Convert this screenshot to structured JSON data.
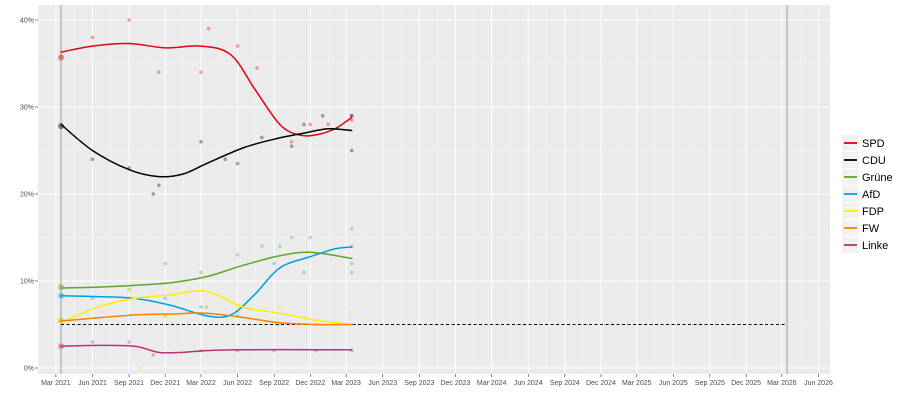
{
  "chart_data": {
    "type": "line",
    "title": "",
    "xlabel": "",
    "ylabel": "",
    "ylim": [
      0,
      40
    ],
    "xlim": [
      "2021-01-15",
      "2026-06-30"
    ],
    "y_ticks": [
      {
        "value": 0,
        "label": "0%"
      },
      {
        "value": 10,
        "label": "10%"
      },
      {
        "value": 20,
        "label": "20%"
      },
      {
        "value": 30,
        "label": "30%"
      },
      {
        "value": 40,
        "label": "40%"
      }
    ],
    "x_ticks": [
      {
        "date": "2021-03-01",
        "label": "Mar 2021"
      },
      {
        "date": "2021-06-01",
        "label": "Jun 2021"
      },
      {
        "date": "2021-09-01",
        "label": "Sep 2021"
      },
      {
        "date": "2021-12-01",
        "label": "Dec 2021"
      },
      {
        "date": "2022-03-01",
        "label": "Mar 2022"
      },
      {
        "date": "2022-06-01",
        "label": "Jun 2022"
      },
      {
        "date": "2022-09-01",
        "label": "Sep 2022"
      },
      {
        "date": "2022-12-01",
        "label": "Dec 2022"
      },
      {
        "date": "2023-03-01",
        "label": "Mar 2023"
      },
      {
        "date": "2023-06-01",
        "label": "Jun 2023"
      },
      {
        "date": "2023-09-01",
        "label": "Sep 2023"
      },
      {
        "date": "2023-12-01",
        "label": "Dec 2023"
      },
      {
        "date": "2024-03-01",
        "label": "Mar 2024"
      },
      {
        "date": "2024-06-01",
        "label": "Jun 2024"
      },
      {
        "date": "2024-09-01",
        "label": "Sep 2024"
      },
      {
        "date": "2024-12-01",
        "label": "Dec 2024"
      },
      {
        "date": "2025-03-01",
        "label": "Mar 2025"
      },
      {
        "date": "2025-06-01",
        "label": "Jun 2025"
      },
      {
        "date": "2025-09-01",
        "label": "Sep 2025"
      },
      {
        "date": "2025-12-01",
        "label": "Dec 2025"
      },
      {
        "date": "2026-03-01",
        "label": "Mar 2026"
      },
      {
        "date": "2026-06-01",
        "label": "Jun 2026"
      }
    ],
    "grid": true,
    "legend_position": "right",
    "election_markers": [
      "2021-03-14",
      "2026-03-14"
    ],
    "threshold": {
      "value": 5,
      "from": "2021-03-14",
      "to": "2026-03-14",
      "style": "dashed",
      "color": "#000000"
    },
    "series": [
      {
        "name": "SPD",
        "color": "#e3000f",
        "line": [
          [
            "2021-03-14",
            36.3
          ],
          [
            "2021-06-01",
            37.0
          ],
          [
            "2021-09-01",
            37.3
          ],
          [
            "2021-12-01",
            36.8
          ],
          [
            "2022-03-01",
            37.0
          ],
          [
            "2022-05-15",
            36.0
          ],
          [
            "2022-07-15",
            32.0
          ],
          [
            "2022-09-15",
            28.0
          ],
          [
            "2022-11-01",
            26.8
          ],
          [
            "2022-12-15",
            26.8
          ],
          [
            "2023-02-01",
            27.5
          ],
          [
            "2023-03-15",
            28.8
          ]
        ],
        "points": [
          [
            "2021-03-14",
            35.7
          ],
          [
            "2021-06-01",
            38
          ],
          [
            "2021-09-01",
            40
          ],
          [
            "2021-11-15",
            34
          ],
          [
            "2022-03-01",
            34
          ],
          [
            "2022-03-20",
            39
          ],
          [
            "2022-06-01",
            37
          ],
          [
            "2022-07-20",
            34.5
          ],
          [
            "2022-10-15",
            26
          ],
          [
            "2022-12-01",
            28
          ],
          [
            "2023-01-15",
            28
          ],
          [
            "2023-03-15",
            28.5
          ],
          [
            "2023-03-15",
            29
          ]
        ]
      },
      {
        "name": "CDU",
        "color": "#000000",
        "line": [
          [
            "2021-03-14",
            28.0
          ],
          [
            "2021-06-01",
            25.0
          ],
          [
            "2021-09-01",
            22.8
          ],
          [
            "2021-11-15",
            22.0
          ],
          [
            "2022-01-15",
            22.3
          ],
          [
            "2022-03-15",
            23.5
          ],
          [
            "2022-06-15",
            25.3
          ],
          [
            "2022-09-01",
            26.3
          ],
          [
            "2022-11-15",
            27.0
          ],
          [
            "2023-01-15",
            27.5
          ],
          [
            "2023-03-15",
            27.3
          ]
        ],
        "points": [
          [
            "2021-03-14",
            27.8
          ],
          [
            "2021-06-01",
            24
          ],
          [
            "2021-09-01",
            23
          ],
          [
            "2021-11-01",
            20
          ],
          [
            "2021-11-15",
            21
          ],
          [
            "2022-03-01",
            26
          ],
          [
            "2022-05-01",
            24
          ],
          [
            "2022-06-01",
            23.5
          ],
          [
            "2022-08-01",
            26.5
          ],
          [
            "2022-10-15",
            25.5
          ],
          [
            "2022-11-15",
            28
          ],
          [
            "2023-01-01",
            29
          ],
          [
            "2023-03-15",
            29
          ],
          [
            "2023-03-15",
            25
          ]
        ]
      },
      {
        "name": "Grüne",
        "color": "#64a12d",
        "line": [
          [
            "2021-03-14",
            9.2
          ],
          [
            "2021-06-15",
            9.3
          ],
          [
            "2021-09-15",
            9.5
          ],
          [
            "2021-12-15",
            9.8
          ],
          [
            "2022-03-15",
            10.5
          ],
          [
            "2022-06-15",
            11.8
          ],
          [
            "2022-09-15",
            12.9
          ],
          [
            "2022-12-01",
            13.3
          ],
          [
            "2023-03-15",
            12.6
          ]
        ],
        "points": [
          [
            "2021-03-14",
            9.3
          ],
          [
            "2021-09-01",
            9
          ],
          [
            "2021-12-01",
            12
          ],
          [
            "2022-03-01",
            11
          ],
          [
            "2022-06-01",
            13
          ],
          [
            "2022-08-01",
            14
          ],
          [
            "2022-09-15",
            14
          ],
          [
            "2022-10-15",
            15
          ],
          [
            "2022-12-01",
            15
          ],
          [
            "2023-03-15",
            16
          ],
          [
            "2023-03-15",
            12
          ]
        ]
      },
      {
        "name": "AfD",
        "color": "#009ee0",
        "line": [
          [
            "2021-03-14",
            8.3
          ],
          [
            "2021-06-15",
            8.2
          ],
          [
            "2021-09-15",
            8.0
          ],
          [
            "2021-12-15",
            7.2
          ],
          [
            "2022-03-15",
            6.0
          ],
          [
            "2022-05-15",
            6.1
          ],
          [
            "2022-07-15",
            8.5
          ],
          [
            "2022-09-15",
            11.5
          ],
          [
            "2022-12-01",
            12.8
          ],
          [
            "2023-02-01",
            13.7
          ],
          [
            "2023-03-15",
            13.9
          ]
        ],
        "points": [
          [
            "2021-03-14",
            8.3
          ],
          [
            "2021-06-01",
            8
          ],
          [
            "2021-09-01",
            8
          ],
          [
            "2021-12-01",
            8
          ],
          [
            "2022-03-01",
            7
          ],
          [
            "2022-06-01",
            6
          ],
          [
            "2022-09-01",
            12
          ],
          [
            "2022-11-15",
            11
          ],
          [
            "2023-03-15",
            11
          ],
          [
            "2023-03-15",
            14
          ]
        ]
      },
      {
        "name": "FDP",
        "color": "#ffed00",
        "line": [
          [
            "2021-03-14",
            5.2
          ],
          [
            "2021-06-15",
            7.0
          ],
          [
            "2021-09-15",
            8.0
          ],
          [
            "2021-12-15",
            8.4
          ],
          [
            "2022-03-15",
            8.8
          ],
          [
            "2022-06-15",
            7.0
          ],
          [
            "2022-09-15",
            6.3
          ],
          [
            "2022-12-15",
            5.5
          ],
          [
            "2023-03-15",
            5.0
          ]
        ],
        "points": [
          [
            "2021-03-14",
            5.5
          ],
          [
            "2021-09-01",
            9
          ],
          [
            "2021-10-01",
            0
          ],
          [
            "2021-12-01",
            9
          ],
          [
            "2022-03-01",
            9
          ],
          [
            "2022-06-01",
            7
          ],
          [
            "2022-09-15",
            7
          ],
          [
            "2023-03-15",
            6.5
          ]
        ]
      },
      {
        "name": "FW",
        "color": "#f28500",
        "line": [
          [
            "2021-03-14",
            5.4
          ],
          [
            "2021-09-15",
            6.1
          ],
          [
            "2021-12-15",
            6.2
          ],
          [
            "2022-03-15",
            6.3
          ],
          [
            "2022-06-15",
            5.8
          ],
          [
            "2022-09-15",
            5.2
          ],
          [
            "2022-12-15",
            5.0
          ],
          [
            "2023-03-15",
            5.0
          ]
        ],
        "points": [
          [
            "2021-03-14",
            5.4
          ],
          [
            "2021-12-01",
            6
          ],
          [
            "2022-03-15",
            7
          ],
          [
            "2022-06-01",
            6.5
          ],
          [
            "2022-09-15",
            5
          ],
          [
            "2022-12-15",
            5
          ]
        ]
      },
      {
        "name": "Linke",
        "color": "#be3075",
        "line": [
          [
            "2021-03-14",
            2.5
          ],
          [
            "2021-06-15",
            2.6
          ],
          [
            "2021-09-15",
            2.5
          ],
          [
            "2021-11-15",
            1.8
          ],
          [
            "2022-01-15",
            1.8
          ],
          [
            "2022-03-15",
            2.0
          ],
          [
            "2022-06-15",
            2.1
          ],
          [
            "2022-12-15",
            2.1
          ],
          [
            "2023-03-15",
            2.1
          ]
        ],
        "points": [
          [
            "2021-03-14",
            2.5
          ],
          [
            "2021-06-01",
            3
          ],
          [
            "2021-09-01",
            3
          ],
          [
            "2021-11-01",
            1.5
          ],
          [
            "2022-03-01",
            2
          ],
          [
            "2022-06-01",
            2
          ],
          [
            "2022-09-01",
            2
          ],
          [
            "2022-12-15",
            2
          ],
          [
            "2023-03-15",
            2
          ]
        ]
      }
    ]
  }
}
